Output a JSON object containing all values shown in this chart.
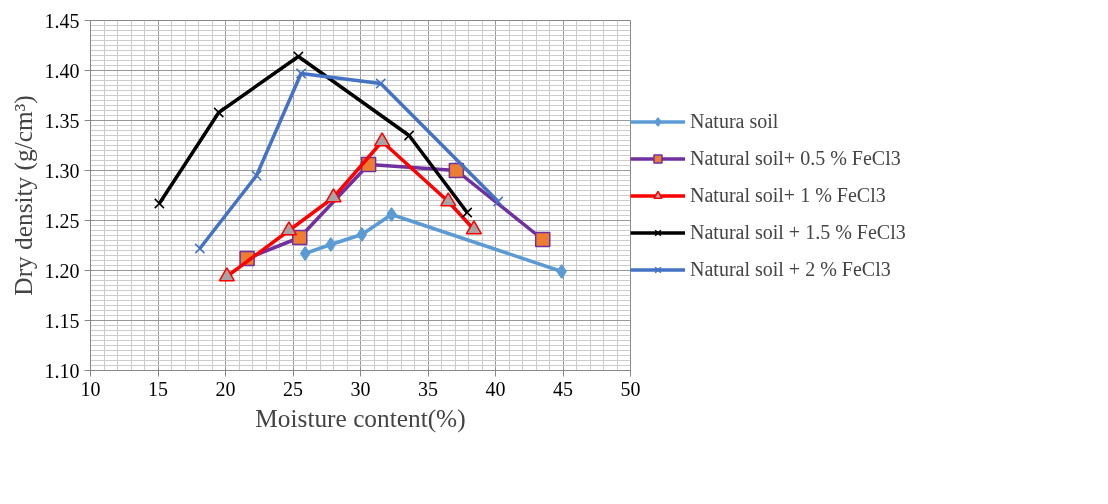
{
  "chart_data": {
    "type": "line",
    "xlabel": "Moisture content(%)",
    "ylabel": "Dry density (g/cm³)",
    "xlim": [
      10,
      50
    ],
    "xticks": [
      10,
      15,
      20,
      25,
      30,
      35,
      40,
      45,
      50
    ],
    "ylim": [
      1.1,
      1.45
    ],
    "yticks": [
      {
        "value": 1.1,
        "label": "1.10"
      },
      {
        "value": 1.15,
        "label": "1.15"
      },
      {
        "value": 1.2,
        "label": "1.20"
      },
      {
        "value": 1.25,
        "label": "1.25"
      },
      {
        "value": 1.3,
        "label": "1.30"
      },
      {
        "value": 1.35,
        "label": "1.35"
      },
      {
        "value": 1.4,
        "label": "1.40"
      },
      {
        "value": 1.45,
        "label": "1.45"
      }
    ],
    "grid": true,
    "legend": "right",
    "line_style": "solid",
    "series": [
      {
        "name": "Natura soil",
        "color": "#5b9bd5",
        "marker": "diamond",
        "x": [
          25.9,
          27.8,
          30.1,
          32.3,
          44.9
        ],
        "values": [
          1.217,
          1.226,
          1.236,
          1.256,
          1.199
        ]
      },
      {
        "name": "Natural soil+ 0.5 % FeCl3",
        "color": "#7030a0",
        "marker": "square",
        "x": [
          21.6,
          25.5,
          30.6,
          37.1,
          43.5
        ],
        "values": [
          1.212,
          1.233,
          1.306,
          1.3,
          1.231
        ]
      },
      {
        "name": "Natural soil+ 1 % FeCl3",
        "color": "#ff0000",
        "marker": "triangle",
        "x": [
          20.1,
          24.7,
          28.0,
          31.6,
          36.5,
          38.4
        ],
        "values": [
          1.194,
          1.24,
          1.273,
          1.329,
          1.269,
          1.241
        ]
      },
      {
        "name": "Natural soil + 1.5 % FeCl3",
        "color": "#000000",
        "marker": "cross",
        "x": [
          15.1,
          19.5,
          25.4,
          33.6,
          37.9
        ],
        "values": [
          1.267,
          1.358,
          1.414,
          1.335,
          1.258
        ]
      },
      {
        "name": "Natural soil + 2 % FeCl3",
        "color": "#4472c4",
        "marker": "cross",
        "x": [
          18.1,
          22.3,
          25.6,
          31.5,
          40.2
        ],
        "values": [
          1.222,
          1.295,
          1.397,
          1.387,
          1.269
        ]
      }
    ]
  }
}
